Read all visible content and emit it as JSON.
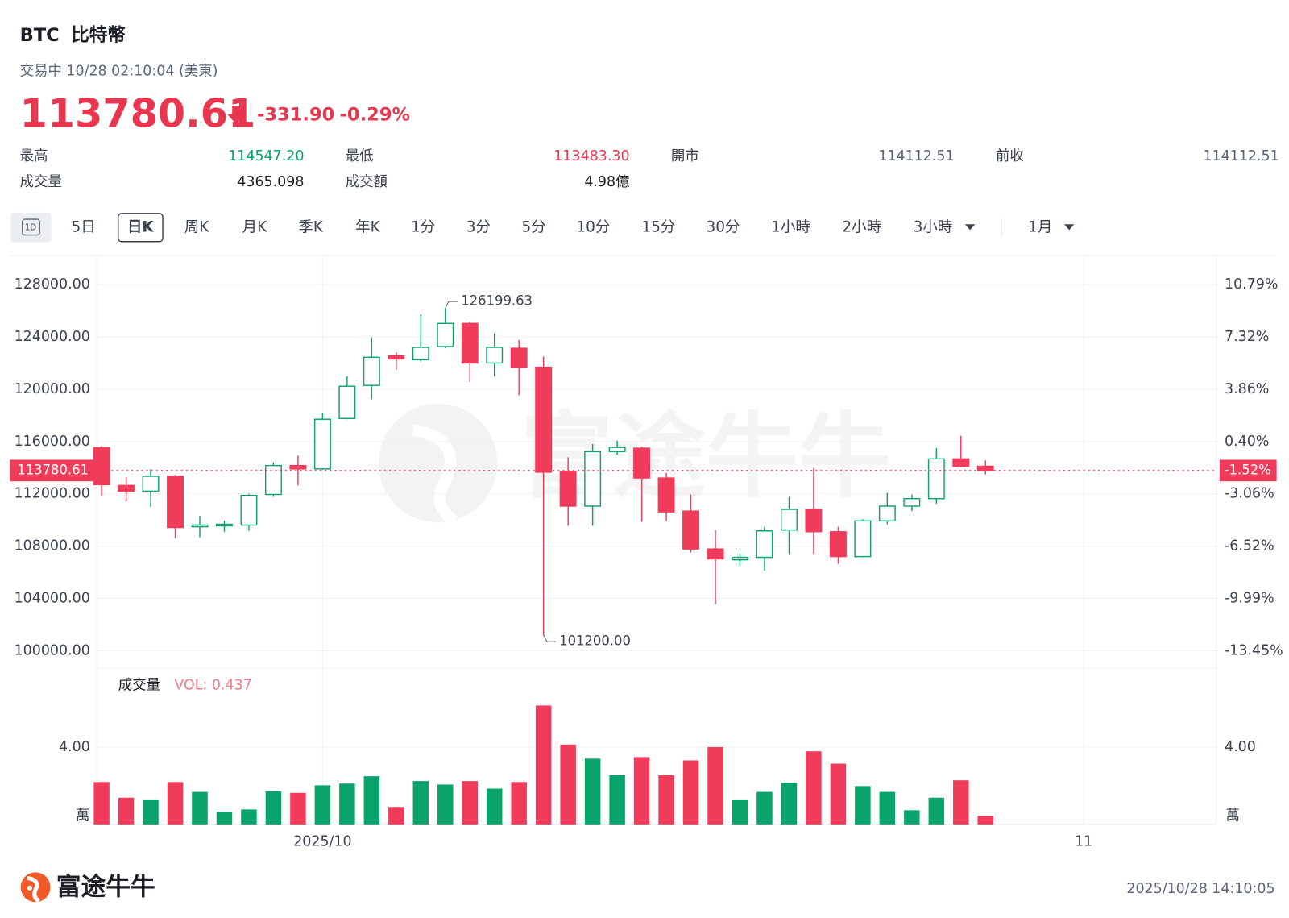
{
  "header": {
    "ticker": "BTC",
    "name": "比特幣",
    "status": "交易中 10/28 02:10:04 (美東)",
    "price": "113780.61",
    "change": "-331.90",
    "change_pct": "-0.29%",
    "price_color": "#e8364f"
  },
  "stats": [
    {
      "label": "最高",
      "value": "114547.20",
      "color": "#0aa36b"
    },
    {
      "label": "最低",
      "value": "113483.30",
      "color": "#e8364f"
    },
    {
      "label": "開市",
      "value": "114112.51",
      "color": "#5b6478"
    },
    {
      "label": "前收",
      "value": "114112.51",
      "color": "#5b6478"
    },
    {
      "label": "成交量",
      "value": "4365.098",
      "color": "#222222"
    },
    {
      "label": "成交額",
      "value": "4.98億",
      "color": "#222222"
    }
  ],
  "tabs": {
    "items": [
      "1D",
      "5日",
      "日K",
      "周K",
      "月K",
      "季K",
      "年K",
      "1分",
      "3分",
      "5分",
      "10分",
      "15分",
      "30分",
      "1小時",
      "2小時",
      "3小時",
      "1月"
    ],
    "selected_index": 2,
    "dropdown_indices": [
      15,
      16
    ]
  },
  "chart_data": {
    "type": "candlestick",
    "up_color": "#0aa36b",
    "down_color": "#f03c5a",
    "up_hollow": true,
    "grid": true,
    "xlim": [
      -0.2,
      45.4
    ],
    "xticks": [
      {
        "value": 9,
        "label": "2025/10"
      },
      {
        "value": 40,
        "label": "11"
      }
    ],
    "ylim": [
      98670,
      130150
    ],
    "yticks": [
      {
        "value": 100000,
        "label": "100000.00"
      },
      {
        "value": 104000,
        "label": "104000.00"
      },
      {
        "value": 108000,
        "label": "108000.00"
      },
      {
        "value": 112000,
        "label": "112000.00"
      },
      {
        "value": 116000,
        "label": "116000.00"
      },
      {
        "value": 120000,
        "label": "120000.00"
      },
      {
        "value": 124000,
        "label": "124000.00"
      },
      {
        "value": 128000,
        "label": "128000.00"
      }
    ],
    "y2lim": [
      -14.6,
      12.65
    ],
    "y2ticks": [
      {
        "value": -13.45,
        "label": "-13.45%"
      },
      {
        "value": -9.99,
        "label": "-9.99%"
      },
      {
        "value": -6.52,
        "label": "-6.52%"
      },
      {
        "value": -3.06,
        "label": "-3.06%"
      },
      {
        "value": 0.4,
        "label": "0.40%"
      },
      {
        "value": 3.86,
        "label": "3.86%"
      },
      {
        "value": 7.32,
        "label": "7.32%"
      },
      {
        "value": 10.79,
        "label": "10.79%"
      }
    ],
    "open": [
      115533,
      112640,
      112200,
      113340,
      109480,
      109550,
      109610,
      111950,
      114160,
      113900,
      117760,
      120290,
      122560,
      122250,
      123260,
      125030,
      122000,
      123130,
      121680,
      113720,
      111060,
      115230,
      115490,
      113210,
      110680,
      107780,
      106950,
      107140,
      109230,
      110810,
      109100,
      107200,
      109930,
      111060,
      111630,
      114670,
      114112.51
    ],
    "high": [
      115650,
      113270,
      113900,
      113460,
      110300,
      109930,
      112010,
      114410,
      114920,
      118200,
      120985,
      123960,
      122820,
      125720,
      126199.63,
      125150,
      124270,
      123770,
      122500,
      114790,
      115800,
      116060,
      115610,
      113590,
      111950,
      109230,
      107460,
      109480,
      111760,
      113970,
      109480,
      110050,
      112070,
      111950,
      115490,
      116430,
      114547.2
    ],
    "low": [
      111820,
      111440,
      111000,
      108600,
      108660,
      109100,
      109170,
      111760,
      112640,
      113840,
      117700,
      119220,
      121490,
      122120,
      123130,
      120540,
      120990,
      119530,
      101200,
      109550,
      109550,
      114980,
      109860,
      109920,
      107520,
      103540,
      106510,
      106130,
      107400,
      107400,
      106640,
      107140,
      109670,
      110680,
      111250,
      114040,
      113483.3
    ],
    "close": [
      112700,
      112200,
      113340,
      109420,
      109610,
      109670,
      111880,
      114160,
      113900,
      117700,
      120230,
      122440,
      122310,
      123200,
      125030,
      122000,
      123200,
      121680,
      113650,
      111060,
      115230,
      115550,
      113210,
      110620,
      107780,
      107020,
      107140,
      109160,
      110810,
      109100,
      107200,
      109930,
      111060,
      111630,
      114670,
      114100,
      113780.61
    ],
    "annotations": [
      {
        "value": 126199.63,
        "label": "126199.63"
      },
      {
        "value": 101200,
        "label": "101200.00"
      }
    ],
    "last_price": {
      "value": 113780.61,
      "label": "113780.61"
    },
    "last_change": {
      "value": -1.52,
      "label": "-1.52%"
    },
    "volume": {
      "type": "bar",
      "label": "成交量",
      "readout": "VOL: 0.437",
      "unit": "萬",
      "ylim": [
        0,
        8
      ],
      "yticks": [
        {
          "value": 4,
          "label": "4.00"
        }
      ],
      "values": [
        2.19,
        1.38,
        1.29,
        2.19,
        1.68,
        0.65,
        0.77,
        1.72,
        1.63,
        2.02,
        2.11,
        2.49,
        0.9,
        2.24,
        2.06,
        2.24,
        1.85,
        2.19,
        6.15,
        4.13,
        3.4,
        2.54,
        3.48,
        2.54,
        3.31,
        4.0,
        1.29,
        1.68,
        2.15,
        3.78,
        3.14,
        1.98,
        1.68,
        0.73,
        1.38,
        2.28,
        0.437
      ]
    }
  },
  "footer": {
    "brand": "富途牛牛",
    "timestamp": "2025/10/28 14:10:05"
  }
}
